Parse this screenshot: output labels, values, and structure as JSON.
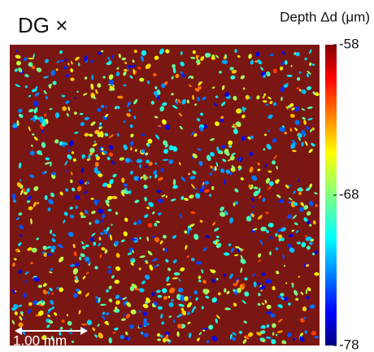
{
  "chart_data": {
    "type": "heatmap",
    "title": "DG ×",
    "colorbar_label": "Depth Δd (μm)",
    "clim": [
      -78,
      -58
    ],
    "cticks": [
      -58,
      -68,
      -78
    ],
    "colormap": "jet",
    "background_color": "#7a1712",
    "scale_bar_label": "1.00 mm"
  }
}
